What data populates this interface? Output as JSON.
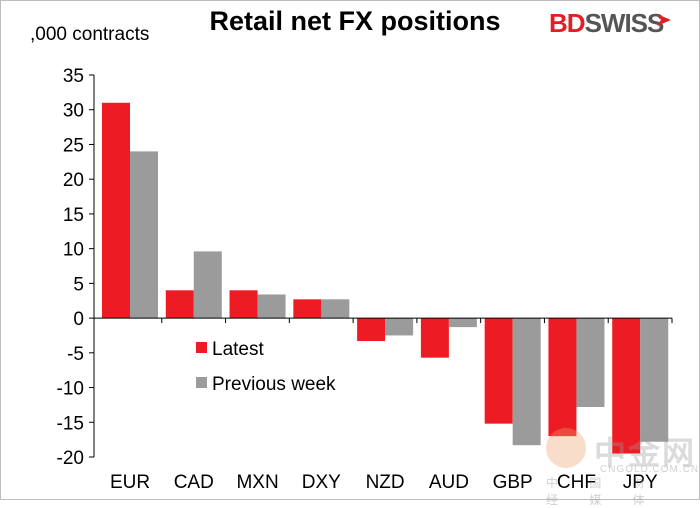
{
  "header": {
    "title": "Retail net FX positions",
    "unit_label": ",000 contracts",
    "brand_bd": "BD",
    "brand_swiss": "SWISS"
  },
  "watermark": {
    "chinese": "中金网",
    "url": "CNGOLD.COM.CN",
    "subtitle": "中 国 财 经 媒 体"
  },
  "colors": {
    "latest": "#ed1c24",
    "previous": "#9b9b9b",
    "brand_red": "#e31e24"
  },
  "chart_data": {
    "type": "bar",
    "title": "Retail net FX positions",
    "ylabel": ",000 contracts",
    "xlabel": "",
    "ylim": [
      -20,
      35
    ],
    "yticks": [
      35,
      30,
      25,
      20,
      15,
      10,
      5,
      0,
      -5,
      -10,
      -15,
      -20
    ],
    "legend_position": "center-left",
    "categories": [
      "EUR",
      "CAD",
      "MXN",
      "DXY",
      "NZD",
      "AUD",
      "GBP",
      "CHF",
      "JPY"
    ],
    "series": [
      {
        "name": "Latest",
        "values": [
          31,
          4,
          4,
          2.7,
          -3.3,
          -5.7,
          -15.2,
          -17,
          -19.5
        ]
      },
      {
        "name": "Previous week",
        "values": [
          24,
          9.6,
          3.4,
          2.7,
          -2.5,
          -1.3,
          -18.3,
          -12.8,
          -17.8
        ]
      }
    ]
  }
}
